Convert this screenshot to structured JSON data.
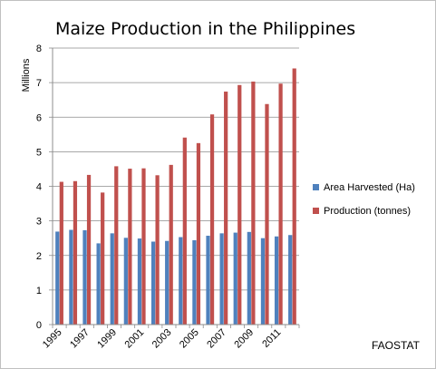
{
  "chart_data": {
    "type": "bar",
    "title": "Maize Production in the Philippines",
    "ylabel": "Millions",
    "xlabel": "",
    "ylim": [
      0,
      8
    ],
    "yticks": [
      0,
      1,
      2,
      3,
      4,
      5,
      6,
      7,
      8
    ],
    "grid": true,
    "legend_position": "right",
    "source": "FAOSTAT",
    "categories": [
      "1995",
      "1996",
      "1997",
      "1998",
      "1999",
      "2000",
      "2001",
      "2002",
      "2003",
      "2004",
      "2005",
      "2006",
      "2007",
      "2008",
      "2009",
      "2010",
      "2011",
      "2012"
    ],
    "xtick_labels": [
      "1995",
      "",
      "1997",
      "",
      "1999",
      "",
      "2001",
      "",
      "2003",
      "",
      "2005",
      "",
      "2007",
      "",
      "2009",
      "",
      "2011",
      ""
    ],
    "series": [
      {
        "name": "Area Harvested (Ha)",
        "color": "#4f81bd",
        "values": [
          2.69,
          2.74,
          2.73,
          2.35,
          2.64,
          2.51,
          2.49,
          2.4,
          2.42,
          2.53,
          2.44,
          2.57,
          2.64,
          2.66,
          2.68,
          2.5,
          2.55,
          2.59
        ]
      },
      {
        "name": "Production (tonnes)",
        "color": "#c0504d",
        "values": [
          4.13,
          4.15,
          4.33,
          3.82,
          4.58,
          4.51,
          4.52,
          4.32,
          4.62,
          5.41,
          5.25,
          6.08,
          6.74,
          6.93,
          7.03,
          6.38,
          6.97,
          7.41
        ]
      }
    ]
  }
}
